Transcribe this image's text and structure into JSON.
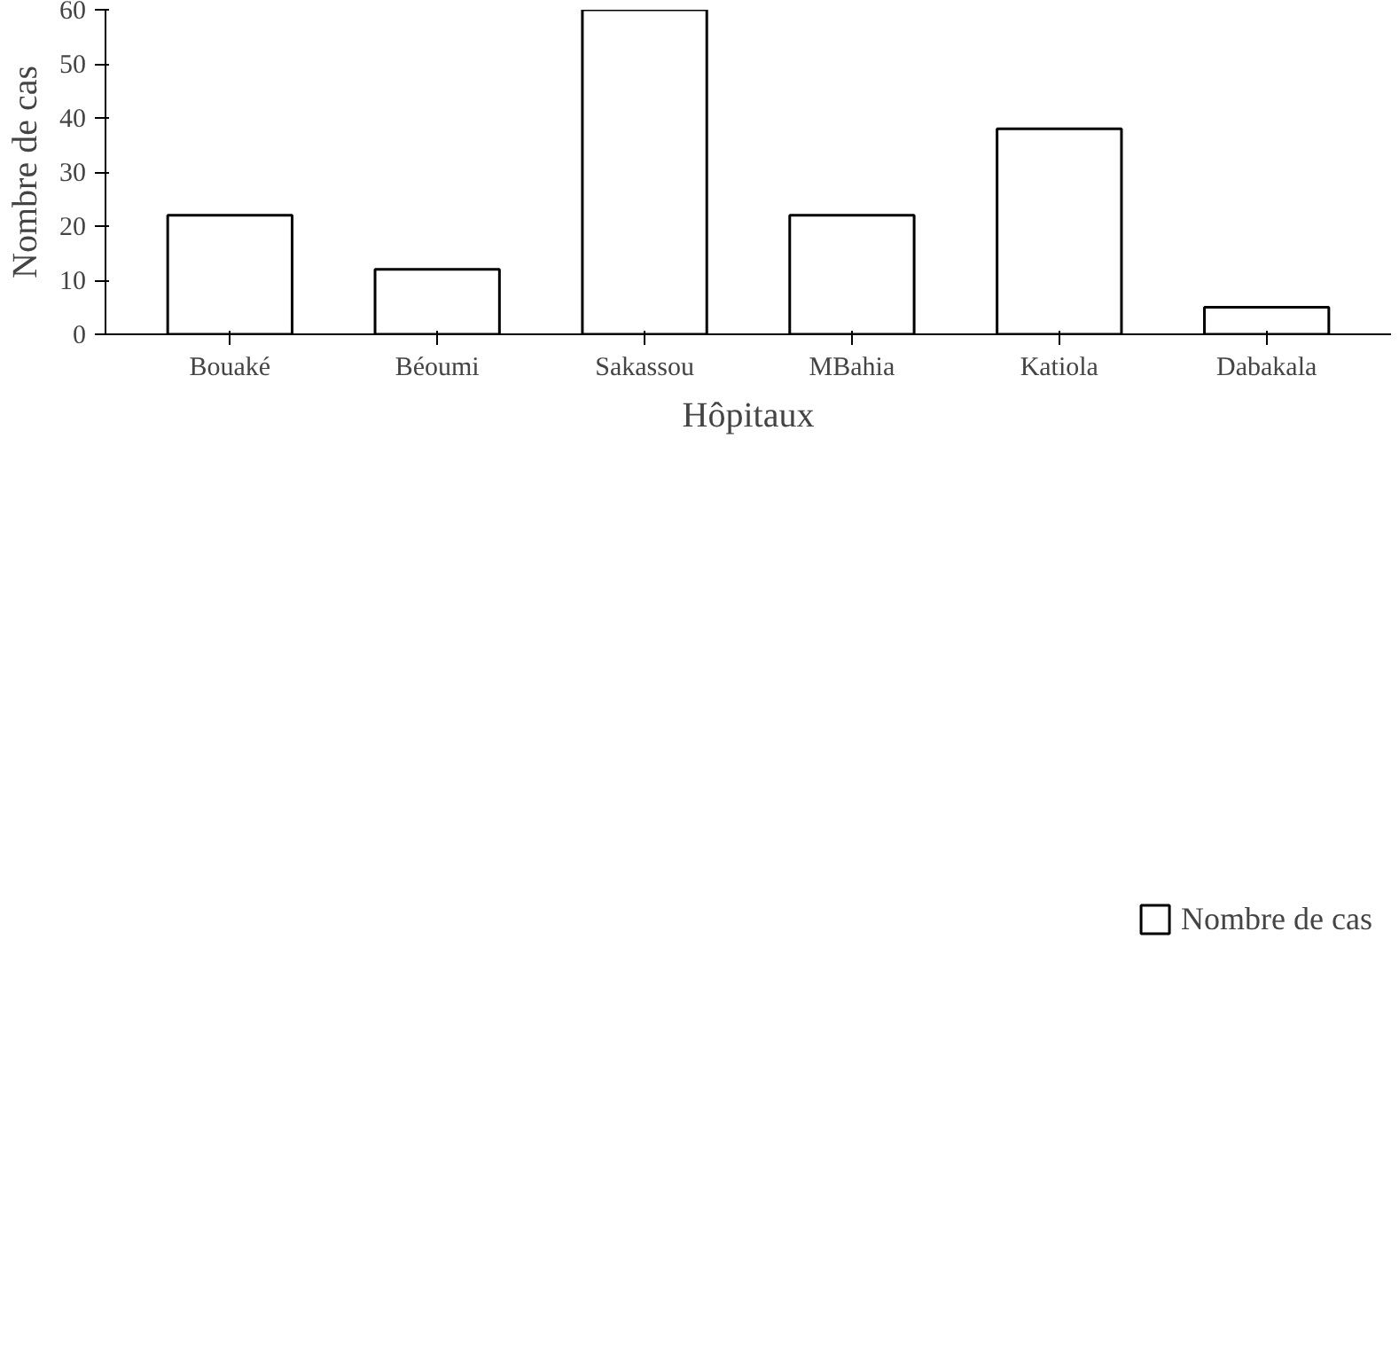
{
  "chart_data": {
    "type": "bar",
    "xlabel": "Hôpitaux",
    "ylabel": "Nombre de cas",
    "categories": [
      "Bouaké",
      "Béoumi",
      "Sakassou",
      "MBahia",
      "Katiola",
      "Dabakala"
    ],
    "series": [
      {
        "name": "Nombre de cas",
        "color": "#ffffff",
        "values": [
          22,
          12,
          60,
          22,
          38,
          5
        ]
      }
    ],
    "ylim": [
      0,
      60
    ],
    "yticks": [
      0,
      10,
      20,
      30,
      40,
      50,
      60
    ],
    "legend": "bottom",
    "grid": false
  }
}
